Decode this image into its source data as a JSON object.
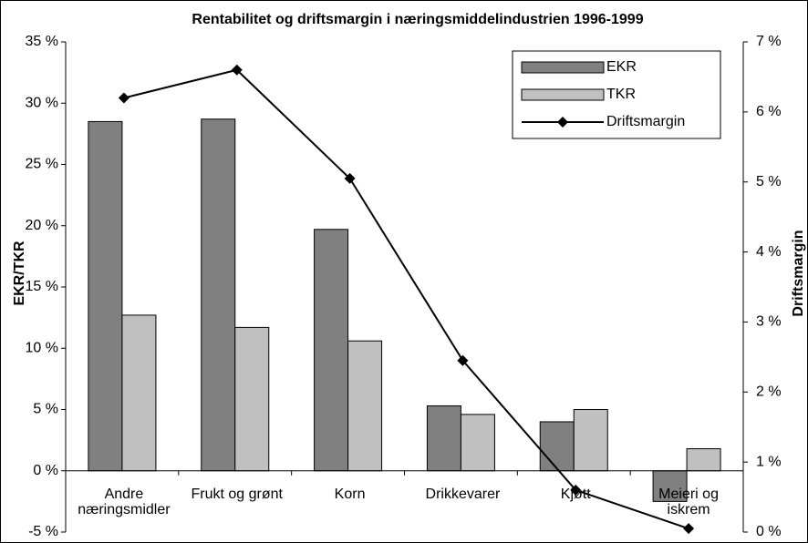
{
  "chart_data": {
    "type": "bar_line",
    "title": "Rentabilitet og driftsmargin i næringsmiddelindustrien 1996-1999",
    "y_label": "EKR/TKR",
    "y2_label": "Driftsmargin",
    "categories": [
      "Andre\nnæringsmidler",
      "Frukt og grønt",
      "Korn",
      "Drikkevarer",
      "Kjøtt",
      "Meieri og\niskrem"
    ],
    "series": [
      {
        "name": "EKR",
        "color": "#808080",
        "type": "bar",
        "values": [
          28.5,
          28.7,
          19.7,
          5.3,
          4.0,
          -2.5
        ]
      },
      {
        "name": "TKR",
        "color": "#c0c0c0",
        "type": "bar",
        "values": [
          12.7,
          11.7,
          10.6,
          4.6,
          5.0,
          1.8
        ]
      },
      {
        "name": "Driftsmargin",
        "color": "#000000",
        "type": "line",
        "axis": "y2",
        "values": [
          6.2,
          6.6,
          5.05,
          2.45,
          0.6,
          0.05
        ]
      }
    ],
    "ylim": [
      -5,
      35
    ],
    "yticks": [
      {
        "value": -5,
        "label": "-5 %"
      },
      {
        "value": 0,
        "label": "0 %"
      },
      {
        "value": 5,
        "label": "5 %"
      },
      {
        "value": 10,
        "label": "10 %"
      },
      {
        "value": 15,
        "label": "15 %"
      },
      {
        "value": 20,
        "label": "20 %"
      },
      {
        "value": 25,
        "label": "25 %"
      },
      {
        "value": 30,
        "label": "30 %"
      },
      {
        "value": 35,
        "label": "35 %"
      }
    ],
    "y2lim": [
      0,
      7
    ],
    "y2ticks": [
      {
        "value": 0,
        "label": "0 %"
      },
      {
        "value": 1,
        "label": "1 %"
      },
      {
        "value": 2,
        "label": "2 %"
      },
      {
        "value": 3,
        "label": "3 %"
      },
      {
        "value": 4,
        "label": "4 %"
      },
      {
        "value": 5,
        "label": "5 %"
      },
      {
        "value": 6,
        "label": "6 %"
      },
      {
        "value": 7,
        "label": "7 %"
      }
    ],
    "legend": "top-right",
    "grid": false
  }
}
